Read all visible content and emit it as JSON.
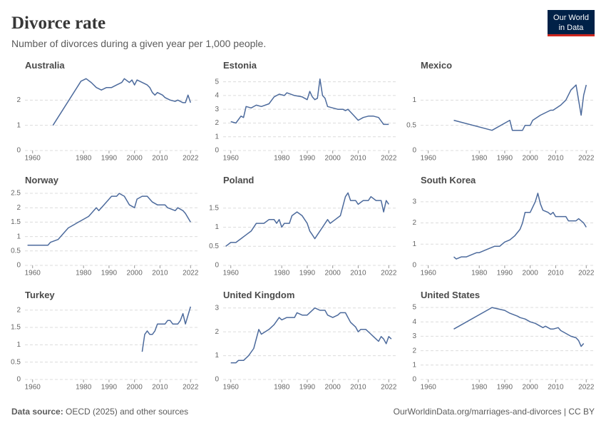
{
  "title": "Divorce rate",
  "subtitle": "Number of divorces during a given year per 1,000 people.",
  "logo": [
    "Our World",
    "in Data"
  ],
  "source_label": "Data source:",
  "source": "OECD (2025) and other sources",
  "url": "OurWorldinData.org/marriages-and-divorces | CC BY",
  "chart_data": [
    {
      "type": "line",
      "title": "Australia",
      "color": "#4c6a9c",
      "grid": true,
      "xlim": [
        1957,
        2025
      ],
      "xticks": [
        1960,
        1980,
        1990,
        2000,
        2010,
        2022
      ],
      "ylim": [
        0,
        3
      ],
      "yticks": [
        0,
        1,
        2
      ],
      "x": [
        1968,
        1979,
        1981,
        1983,
        1985,
        1987,
        1989,
        1991,
        1993,
        1995,
        1996,
        1998,
        1999,
        2000,
        2001,
        2003,
        2005,
        2006,
        2007,
        2008,
        2009,
        2011,
        2012,
        2014,
        2016,
        2017,
        2019,
        2020,
        2021,
        2022
      ],
      "values": [
        1.0,
        2.75,
        2.85,
        2.7,
        2.5,
        2.4,
        2.5,
        2.5,
        2.6,
        2.7,
        2.85,
        2.7,
        2.8,
        2.6,
        2.8,
        2.7,
        2.6,
        2.5,
        2.3,
        2.2,
        2.3,
        2.2,
        2.1,
        2.0,
        1.95,
        2.0,
        1.9,
        1.9,
        2.2,
        1.9
      ]
    },
    {
      "type": "line",
      "title": "Estonia",
      "color": "#4c6a9c",
      "grid": true,
      "xlim": [
        1957,
        2025
      ],
      "xticks": [
        1960,
        1980,
        1990,
        2000,
        2010,
        2022
      ],
      "ylim": [
        0,
        5.5
      ],
      "yticks": [
        0,
        1,
        2,
        3,
        4,
        5
      ],
      "x": [
        1960,
        1962,
        1964,
        1965,
        1966,
        1968,
        1970,
        1972,
        1975,
        1977,
        1979,
        1981,
        1982,
        1985,
        1988,
        1990,
        1991,
        1992,
        1993,
        1994,
        1995,
        1996,
        1997,
        1998,
        2000,
        2002,
        2004,
        2005,
        2006,
        2008,
        2010,
        2012,
        2014,
        2016,
        2018,
        2020,
        2022
      ],
      "values": [
        2.1,
        2.0,
        2.5,
        2.4,
        3.2,
        3.1,
        3.3,
        3.2,
        3.4,
        3.9,
        4.1,
        4.0,
        4.2,
        4.0,
        3.9,
        3.7,
        4.3,
        3.9,
        3.7,
        3.8,
        5.2,
        4.0,
        3.8,
        3.2,
        3.1,
        3.0,
        3.0,
        2.9,
        3.0,
        2.6,
        2.2,
        2.4,
        2.5,
        2.5,
        2.4,
        1.9,
        1.9
      ]
    },
    {
      "type": "line",
      "title": "Mexico",
      "color": "#4c6a9c",
      "grid": true,
      "xlim": [
        1957,
        2025
      ],
      "xticks": [
        1960,
        1980,
        1990,
        2000,
        2010,
        2022
      ],
      "ylim": [
        0,
        1.5
      ],
      "yticks": [
        0,
        0.5,
        1
      ],
      "x": [
        1970,
        1985,
        1992,
        1993,
        1997,
        1998,
        2000,
        2001,
        2004,
        2006,
        2008,
        2009,
        2012,
        2014,
        2016,
        2018,
        2020,
        2021,
        2022
      ],
      "values": [
        0.6,
        0.4,
        0.6,
        0.4,
        0.4,
        0.5,
        0.5,
        0.6,
        0.7,
        0.75,
        0.8,
        0.8,
        0.9,
        1.0,
        1.2,
        1.3,
        0.7,
        1.1,
        1.3
      ]
    },
    {
      "type": "line",
      "title": "Norway",
      "color": "#4c6a9c",
      "grid": true,
      "xlim": [
        1957,
        2025
      ],
      "xticks": [
        1960,
        1980,
        1990,
        2000,
        2010,
        2022
      ],
      "ylim": [
        0,
        2.65
      ],
      "yticks": [
        0,
        0.5,
        1,
        1.5,
        2,
        2.5
      ],
      "x": [
        1958,
        1966,
        1967,
        1970,
        1972,
        1974,
        1976,
        1978,
        1980,
        1982,
        1984,
        1985,
        1986,
        1988,
        1991,
        1993,
        1994,
        1996,
        1998,
        2000,
        2001,
        2003,
        2005,
        2007,
        2009,
        2012,
        2013,
        2016,
        2017,
        2019,
        2020,
        2022
      ],
      "values": [
        0.7,
        0.7,
        0.8,
        0.9,
        1.1,
        1.3,
        1.4,
        1.5,
        1.6,
        1.7,
        1.9,
        2.0,
        1.9,
        2.1,
        2.4,
        2.4,
        2.5,
        2.4,
        2.1,
        2.0,
        2.3,
        2.4,
        2.4,
        2.2,
        2.1,
        2.1,
        2.0,
        1.9,
        2.0,
        1.9,
        1.8,
        1.5
      ]
    },
    {
      "type": "line",
      "title": "Poland",
      "color": "#4c6a9c",
      "grid": true,
      "xlim": [
        1957,
        2025
      ],
      "xticks": [
        1960,
        1980,
        1990,
        2000,
        2010,
        2022
      ],
      "ylim": [
        0,
        2
      ],
      "yticks": [
        0,
        0.5,
        1,
        1.5
      ],
      "x": [
        1958,
        1960,
        1962,
        1964,
        1966,
        1968,
        1970,
        1973,
        1975,
        1977,
        1978,
        1979,
        1980,
        1981,
        1983,
        1984,
        1986,
        1988,
        1990,
        1991,
        1992,
        1993,
        1994,
        1996,
        1998,
        1999,
        2001,
        2003,
        2005,
        2006,
        2007,
        2009,
        2010,
        2012,
        2014,
        2015,
        2017,
        2019,
        2020,
        2021,
        2022
      ],
      "values": [
        0.5,
        0.6,
        0.6,
        0.7,
        0.8,
        0.9,
        1.1,
        1.1,
        1.2,
        1.2,
        1.1,
        1.2,
        1.0,
        1.1,
        1.1,
        1.3,
        1.4,
        1.3,
        1.1,
        0.9,
        0.8,
        0.7,
        0.8,
        1.0,
        1.2,
        1.1,
        1.2,
        1.3,
        1.8,
        1.9,
        1.7,
        1.7,
        1.6,
        1.7,
        1.7,
        1.8,
        1.7,
        1.7,
        1.4,
        1.7,
        1.6
      ]
    },
    {
      "type": "line",
      "title": "South Korea",
      "color": "#4c6a9c",
      "grid": true,
      "xlim": [
        1957,
        2025
      ],
      "xticks": [
        1960,
        1980,
        1990,
        2000,
        2010,
        2022
      ],
      "ylim": [
        0,
        3.6
      ],
      "yticks": [
        0,
        1,
        2,
        3
      ],
      "x": [
        1970,
        1971,
        1973,
        1975,
        1977,
        1979,
        1980,
        1982,
        1984,
        1986,
        1988,
        1990,
        1992,
        1994,
        1996,
        1997,
        1998,
        2000,
        2002,
        2003,
        2004,
        2005,
        2007,
        2008,
        2009,
        2010,
        2013,
        2014,
        2015,
        2018,
        2019,
        2021,
        2022
      ],
      "values": [
        0.4,
        0.3,
        0.4,
        0.4,
        0.5,
        0.6,
        0.6,
        0.7,
        0.8,
        0.9,
        0.9,
        1.1,
        1.2,
        1.4,
        1.7,
        2.0,
        2.5,
        2.5,
        3.0,
        3.4,
        2.9,
        2.6,
        2.5,
        2.4,
        2.5,
        2.3,
        2.3,
        2.3,
        2.1,
        2.1,
        2.2,
        2.0,
        1.8
      ]
    },
    {
      "type": "line",
      "title": "Turkey",
      "color": "#4c6a9c",
      "grid": true,
      "xlim": [
        1957,
        2025
      ],
      "xticks": [
        1960,
        1980,
        1990,
        2000,
        2010,
        2022
      ],
      "ylim": [
        0,
        2.2
      ],
      "yticks": [
        0,
        0.5,
        1,
        1.5,
        2
      ],
      "x": [
        2003,
        2004,
        2005,
        2006,
        2007,
        2008,
        2009,
        2012,
        2013,
        2014,
        2015,
        2017,
        2018,
        2019,
        2020,
        2022
      ],
      "values": [
        0.8,
        1.3,
        1.4,
        1.3,
        1.3,
        1.4,
        1.6,
        1.6,
        1.7,
        1.7,
        1.6,
        1.6,
        1.7,
        1.9,
        1.6,
        2.1
      ]
    },
    {
      "type": "line",
      "title": "United Kingdom",
      "color": "#4c6a9c",
      "grid": true,
      "xlim": [
        1957,
        2025
      ],
      "xticks": [
        1960,
        1980,
        1990,
        2000,
        2010,
        2022
      ],
      "ylim": [
        0,
        3.2
      ],
      "yticks": [
        0,
        1,
        2,
        3
      ],
      "x": [
        1960,
        1962,
        1963,
        1965,
        1967,
        1969,
        1971,
        1972,
        1975,
        1977,
        1979,
        1980,
        1982,
        1985,
        1986,
        1988,
        1990,
        1993,
        1995,
        1997,
        1998,
        2000,
        2002,
        2003,
        2005,
        2006,
        2007,
        2009,
        2010,
        2011,
        2013,
        2015,
        2016,
        2017,
        2018,
        2019,
        2020,
        2021,
        2022,
        2023
      ],
      "values": [
        0.7,
        0.7,
        0.8,
        0.8,
        1.0,
        1.3,
        2.1,
        1.9,
        2.1,
        2.3,
        2.6,
        2.5,
        2.6,
        2.6,
        2.8,
        2.7,
        2.7,
        3.0,
        2.9,
        2.9,
        2.7,
        2.6,
        2.7,
        2.8,
        2.8,
        2.6,
        2.4,
        2.2,
        2.0,
        2.1,
        2.1,
        1.9,
        1.8,
        1.7,
        1.6,
        1.8,
        1.7,
        1.5,
        1.8,
        1.7
      ]
    },
    {
      "type": "line",
      "title": "United States",
      "color": "#4c6a9c",
      "grid": true,
      "xlim": [
        1957,
        2025
      ],
      "xticks": [
        1960,
        1980,
        1990,
        2000,
        2010,
        2022
      ],
      "ylim": [
        0,
        5.3
      ],
      "yticks": [
        0,
        1,
        2,
        3,
        4,
        5
      ],
      "x": [
        1970,
        1985,
        1990,
        1991,
        1992,
        1995,
        1996,
        1998,
        2000,
        2002,
        2004,
        2005,
        2006,
        2007,
        2008,
        2009,
        2011,
        2012,
        2014,
        2016,
        2018,
        2019,
        2020,
        2021
      ],
      "values": [
        3.5,
        5.0,
        4.8,
        4.7,
        4.6,
        4.4,
        4.3,
        4.2,
        4.0,
        3.9,
        3.7,
        3.6,
        3.7,
        3.6,
        3.5,
        3.5,
        3.6,
        3.4,
        3.2,
        3.0,
        2.9,
        2.7,
        2.3,
        2.5
      ]
    }
  ]
}
